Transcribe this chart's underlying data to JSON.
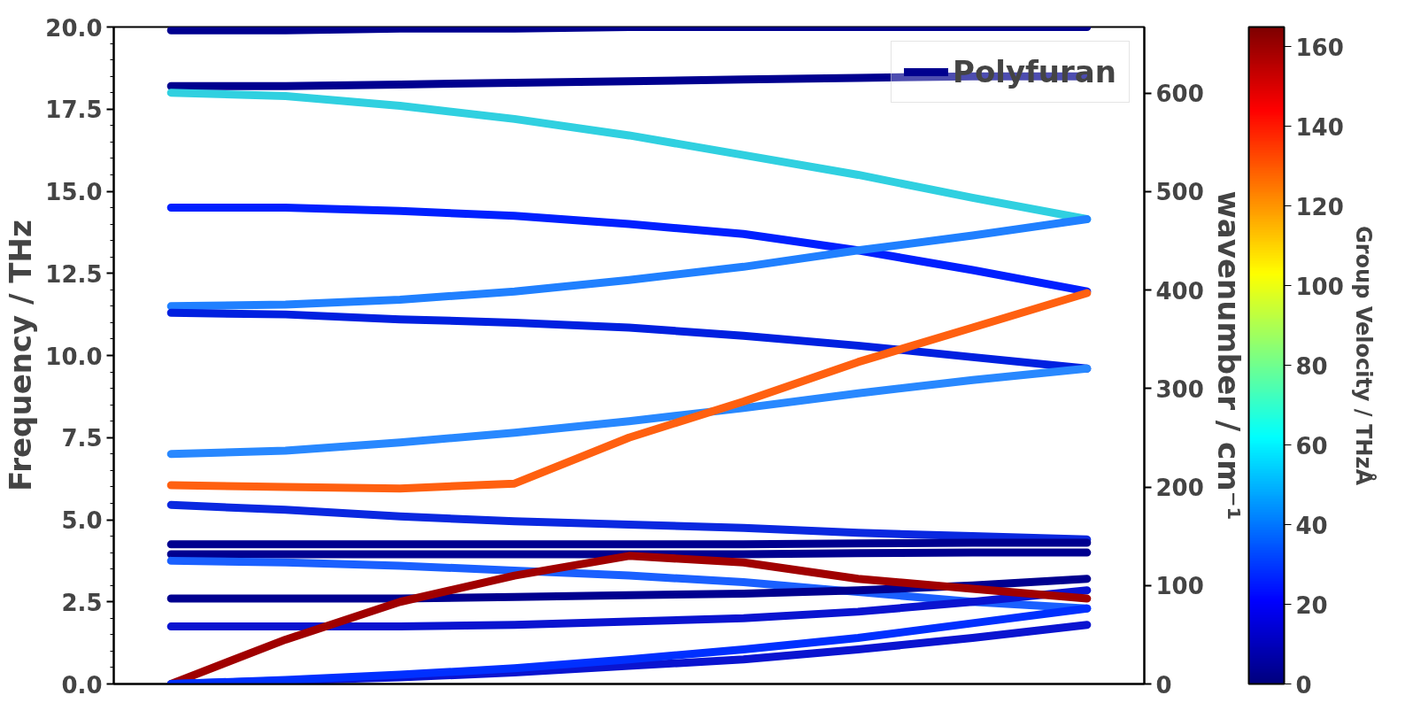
{
  "chart_data": {
    "type": "line",
    "ylabel": "Frequency / THz",
    "y2label": "wavenumber / cm⁻¹",
    "clabel": "Group Velocity / THzÅ",
    "categories": [
      null,
      null,
      null,
      null,
      null,
      null,
      null,
      null,
      null
    ],
    "ylim": [
      0,
      20
    ],
    "yticks": [
      {
        "value": 0,
        "label": "0.0"
      },
      {
        "value": 2.5,
        "label": "2.5"
      },
      {
        "value": 5,
        "label": "5.0"
      },
      {
        "value": 7.5,
        "label": "7.5"
      },
      {
        "value": 10,
        "label": "10.0"
      },
      {
        "value": 12.5,
        "label": "12.5"
      },
      {
        "value": 15,
        "label": "15.0"
      },
      {
        "value": 17.5,
        "label": "17.5"
      },
      {
        "value": 20,
        "label": "20.0"
      }
    ],
    "y2lim": [
      0,
      667.1
    ],
    "y2ticks": [
      0,
      100,
      200,
      300,
      400,
      500,
      600
    ],
    "clim": [
      0,
      165
    ],
    "cticks": [
      0,
      20,
      40,
      60,
      80,
      100,
      120,
      140,
      160
    ],
    "grid": false,
    "legend": "top right",
    "line_style": "solid",
    "marker": "none",
    "series": [
      {
        "color": "#00008f",
        "values": [
          19.9,
          19.9,
          19.95,
          19.95,
          20,
          20,
          20,
          20,
          20
        ]
      },
      {
        "name": "Polyfuran",
        "color": "#00008f",
        "values": [
          18.2,
          18.2,
          18.25,
          18.3,
          18.35,
          18.4,
          18.45,
          18.5,
          18.5
        ]
      },
      {
        "color": "#30d0e0",
        "values": [
          18.0,
          17.9,
          17.6,
          17.2,
          16.7,
          16.1,
          15.5,
          14.8,
          14.15
        ]
      },
      {
        "color": "#0020ff",
        "values": [
          14.5,
          14.5,
          14.4,
          14.25,
          14.0,
          13.7,
          13.2,
          12.6,
          11.95
        ]
      },
      {
        "color": "#2080ff",
        "values": [
          11.5,
          11.55,
          11.7,
          11.95,
          12.3,
          12.7,
          13.2,
          13.65,
          14.15
        ]
      },
      {
        "color": "#0020e0",
        "values": [
          11.3,
          11.25,
          11.1,
          11.0,
          10.85,
          10.6,
          10.3,
          9.95,
          9.6
        ]
      },
      {
        "color": "#2888ff",
        "values": [
          7.0,
          7.1,
          7.35,
          7.65,
          8.0,
          8.4,
          8.85,
          9.25,
          9.6
        ]
      },
      {
        "color": "#ff6010",
        "values": [
          6.05,
          6.0,
          5.95,
          6.1,
          7.5,
          8.6,
          9.8,
          10.85,
          11.9
        ]
      },
      {
        "color": "#0a28e0",
        "values": [
          5.45,
          5.3,
          5.1,
          4.95,
          4.85,
          4.75,
          4.6,
          4.5,
          4.4
        ]
      },
      {
        "color": "#00008f",
        "values": [
          4.25,
          4.25,
          4.25,
          4.25,
          4.25,
          4.25,
          4.28,
          4.3,
          4.3
        ]
      },
      {
        "color": "#00008f",
        "values": [
          3.95,
          3.95,
          3.95,
          3.95,
          3.95,
          3.95,
          3.98,
          4.0,
          4.0
        ]
      },
      {
        "color": "#1a60ff",
        "values": [
          3.75,
          3.7,
          3.6,
          3.45,
          3.3,
          3.1,
          2.8,
          2.5,
          2.3
        ]
      },
      {
        "color": "#00008f",
        "values": [
          2.6,
          2.6,
          2.6,
          2.65,
          2.7,
          2.75,
          2.85,
          3.0,
          3.2
        ]
      },
      {
        "color": "#0a14d0",
        "values": [
          1.75,
          1.75,
          1.75,
          1.8,
          1.9,
          2.0,
          2.2,
          2.5,
          2.85
        ]
      },
      {
        "color": "#a00000",
        "values": [
          0,
          1.35,
          2.5,
          3.3,
          3.9,
          3.7,
          3.2,
          2.9,
          2.6
        ]
      },
      {
        "color": "#0a14d0",
        "values": [
          0,
          0.1,
          0.2,
          0.35,
          0.55,
          0.75,
          1.05,
          1.4,
          1.8
        ]
      },
      {
        "color": "#0030ff",
        "values": [
          0,
          0.12,
          0.28,
          0.48,
          0.75,
          1.05,
          1.4,
          1.85,
          2.3
        ]
      }
    ]
  }
}
